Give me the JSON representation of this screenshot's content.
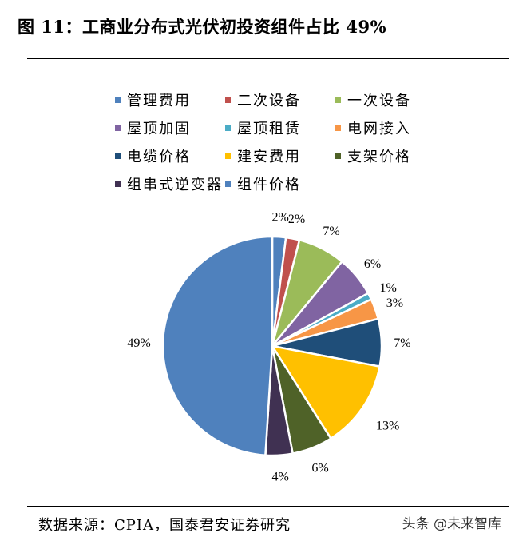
{
  "page": {
    "title": "图 11：工商业分布式光伏初投资组件占比 49%",
    "source": "数据来源：CPIA，国泰君安证券研究",
    "watermark": "头条 @未来智库"
  },
  "chart_data": {
    "type": "pie",
    "title": "图 11：工商业分布式光伏初投资组件占比 49%",
    "legend_position": "top",
    "start": "12 o'clock",
    "direction": "clockwise",
    "slices": [
      {
        "name": "管理费用",
        "value": 2,
        "label": "2%",
        "color": "#4f81bd"
      },
      {
        "name": "二次设备",
        "value": 2,
        "label": "2%",
        "color": "#c0504d"
      },
      {
        "name": "一次设备",
        "value": 7,
        "label": "7%",
        "color": "#9bbb59"
      },
      {
        "name": "屋顶加固",
        "value": 6,
        "label": "6%",
        "color": "#8064a2"
      },
      {
        "name": "屋顶租赁",
        "value": 1,
        "label": "1%",
        "color": "#4bacc6"
      },
      {
        "name": "电网接入",
        "value": 3,
        "label": "3%",
        "color": "#f79646"
      },
      {
        "name": "电缆价格",
        "value": 7,
        "label": "7%",
        "color": "#1f4e79"
      },
      {
        "name": "建安费用",
        "value": 13,
        "label": "13%",
        "color": "#ffc000"
      },
      {
        "name": "支架价格",
        "value": 6,
        "label": "6%",
        "color": "#4f6228"
      },
      {
        "name": "组串式逆变器",
        "value": 4,
        "label": "4%",
        "color": "#403152"
      },
      {
        "name": "组件价格",
        "value": 49,
        "label": "49%",
        "color": "#4f81bd"
      }
    ]
  }
}
